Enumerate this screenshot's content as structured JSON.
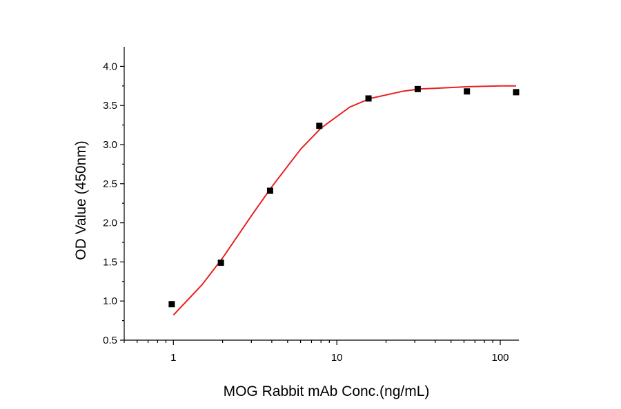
{
  "chart_data": {
    "type": "scatter",
    "xlabel": "MOG Rabbit mAb Conc.(ng/mL)",
    "ylabel": "OD Value (450nm)",
    "x_scale": "log",
    "xlim": [
      0.5,
      130
    ],
    "ylim": [
      0.5,
      4.25
    ],
    "x_ticks": [
      1,
      10,
      100
    ],
    "x_tick_labels": [
      "1",
      "10",
      "100"
    ],
    "y_ticks": [
      0.5,
      1.0,
      1.5,
      2.0,
      2.5,
      3.0,
      3.5,
      4.0
    ],
    "y_tick_labels": [
      "0.5",
      "1.0",
      "1.5",
      "2.0",
      "2.5",
      "3.0",
      "3.5",
      "4.0"
    ],
    "grid": false,
    "series": [
      {
        "type": "scatter",
        "marker": "square",
        "color": "#000000",
        "x": [
          0.977,
          1.953,
          3.906,
          7.813,
          15.625,
          31.25,
          62.5,
          125
        ],
        "y": [
          0.96,
          1.49,
          2.41,
          3.24,
          3.59,
          3.71,
          3.68,
          3.67
        ]
      },
      {
        "type": "line",
        "color": "#e8201f",
        "fit": "4PL",
        "x": [
          1,
          1.5,
          2,
          3,
          4,
          6,
          8,
          12,
          16,
          25,
          32,
          50,
          64,
          100,
          125
        ],
        "y": [
          0.82,
          1.21,
          1.55,
          2.09,
          2.46,
          2.94,
          3.21,
          3.48,
          3.59,
          3.68,
          3.71,
          3.73,
          3.74,
          3.75,
          3.75
        ]
      }
    ]
  }
}
